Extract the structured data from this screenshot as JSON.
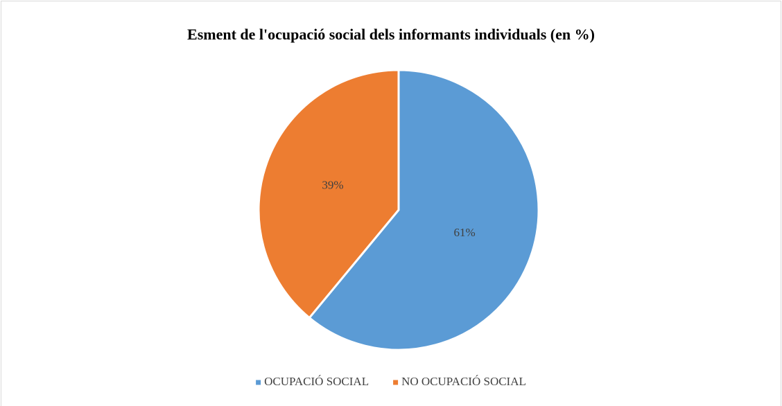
{
  "chart_data": {
    "type": "pie",
    "title": "Esment de l'ocupació social dels informants individuals (en %)",
    "categories": [
      "OCUPACIÓ SOCIAL",
      "NO OCUPACIÓ SOCIAL"
    ],
    "values": [
      61,
      39
    ],
    "value_labels": [
      "61%",
      "39%"
    ],
    "colors": [
      "#5b9bd5",
      "#ed7d31"
    ],
    "legend": "bottom"
  }
}
